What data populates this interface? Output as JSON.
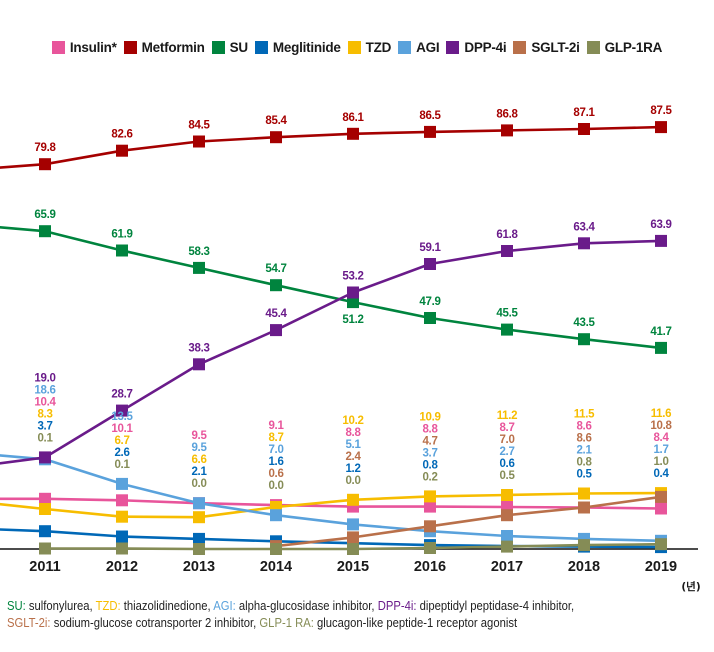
{
  "chart_data": {
    "type": "line",
    "title": "",
    "xlabel": "",
    "ylabel": "",
    "x_unit_label": "(년)",
    "categories": [
      "2011",
      "2012",
      "2013",
      "2014",
      "2015",
      "2016",
      "2017",
      "2018",
      "2019"
    ],
    "ylim": [
      0,
      90
    ],
    "grid": false,
    "y_axis_visible": false,
    "legend": {
      "position": "top-center"
    },
    "series": [
      {
        "name": "Insulin*",
        "color": "#e8559b",
        "values": [
          10.4,
          10.1,
          9.5,
          9.1,
          8.8,
          8.8,
          8.7,
          8.6,
          8.4
        ],
        "labels": [
          "10.4",
          "10.1",
          "9.5",
          "9.1",
          "8.8",
          "8.8",
          "8.7",
          "8.6",
          "8.4"
        ],
        "prior_value_estimate": 10.4
      },
      {
        "name": "Metformin",
        "color": "#a50000",
        "values": [
          79.8,
          82.6,
          84.5,
          85.4,
          86.1,
          86.5,
          86.8,
          87.1,
          87.5
        ],
        "labels": [
          "79.8",
          "82.6",
          "84.5",
          "85.4",
          "86.1",
          "86.5",
          "86.8",
          "87.1",
          "87.5"
        ],
        "prior_value_estimate": 78.6
      },
      {
        "name": "SU",
        "color": "#00843e",
        "values": [
          65.9,
          61.9,
          58.3,
          54.7,
          51.2,
          47.9,
          45.5,
          43.5,
          41.7
        ],
        "labels": [
          "65.9",
          "61.9",
          "58.3",
          "54.7",
          "51.2",
          "47.9",
          "45.5",
          "43.5",
          "41.7"
        ],
        "prior_value_estimate": 67.3
      },
      {
        "name": "Meglitinide",
        "color": "#0068b7",
        "values": [
          3.7,
          2.6,
          2.1,
          1.6,
          1.2,
          0.8,
          0.6,
          0.5,
          0.4
        ],
        "labels": [
          "3.7",
          "2.6",
          "2.1",
          "1.6",
          "1.2",
          "0.8",
          "0.6",
          "0.5",
          "0.4"
        ],
        "prior_value_estimate": 4.3
      },
      {
        "name": "TZD",
        "color": "#f7bd00",
        "values": [
          8.3,
          6.7,
          6.6,
          8.7,
          10.2,
          10.9,
          11.2,
          11.5,
          11.6
        ],
        "labels": [
          "8.3",
          "6.7",
          "6.6",
          "8.7",
          "10.2",
          "10.9",
          "11.2",
          "11.5",
          "11.6"
        ],
        "prior_value_estimate": 10.0
      },
      {
        "name": "AGI",
        "color": "#5aa2dc",
        "values": [
          18.6,
          13.5,
          9.5,
          7.0,
          5.1,
          3.7,
          2.7,
          2.1,
          1.7
        ],
        "labels": [
          "18.6",
          "13.5",
          "9.5",
          "7.0",
          "5.1",
          "3.7",
          "2.7",
          "2.1",
          "1.7"
        ],
        "prior_value_estimate": 20.0
      },
      {
        "name": "DPP-4i",
        "color": "#6a1b8a",
        "values": [
          19.0,
          28.7,
          38.3,
          45.4,
          53.2,
          59.1,
          61.8,
          63.4,
          63.9
        ],
        "labels": [
          "19.0",
          "28.7",
          "38.3",
          "45.4",
          "53.2",
          "59.1",
          "61.8",
          "63.4",
          "63.9"
        ],
        "prior_value_estimate": 16.9
      },
      {
        "name": "SGLT-2i",
        "color": "#b9704a",
        "values": [
          null,
          null,
          null,
          0.6,
          2.4,
          4.7,
          7.0,
          8.6,
          10.8
        ],
        "labels": [
          null,
          null,
          null,
          "0.6",
          "2.4",
          "4.7",
          "7.0",
          "8.6",
          "10.8"
        ],
        "prior_value_estimate": null
      },
      {
        "name": "GLP-1RA",
        "color": "#858c56",
        "values": [
          0.1,
          0.1,
          0.0,
          0.0,
          0.0,
          0.2,
          0.5,
          0.8,
          1.0
        ],
        "labels": [
          "0.1",
          "0.1",
          "0.0",
          "0.0",
          "0.0",
          "0.2",
          "0.5",
          "0.8",
          "1.0"
        ],
        "prior_value_estimate": null
      }
    ]
  },
  "footnote": {
    "lines": [
      {
        "items": [
          {
            "abbr": "SU:",
            "desc": " sulfonylurea,",
            "color": "#00843e"
          },
          {
            "abbr": "TZD:",
            "desc": " thiazolidinedione,",
            "color": "#f7bd00"
          },
          {
            "abbr": "AGI:",
            "desc": " alpha-glucosidase inhibitor,",
            "color": "#5aa2dc"
          },
          {
            "abbr": "DPP-4i:",
            "desc": " dipeptidyl peptidase-4 inhibitor,",
            "color": "#6a1b8a"
          }
        ]
      },
      {
        "items": [
          {
            "abbr": "SGLT-2i:",
            "desc": " sodium-glucose cotransporter 2 inhibitor,",
            "color": "#b9704a"
          },
          {
            "abbr": "GLP-1 RA:",
            "desc": " glucagon-like peptide-1 receptor agonist",
            "color": "#858c56"
          }
        ]
      }
    ]
  }
}
